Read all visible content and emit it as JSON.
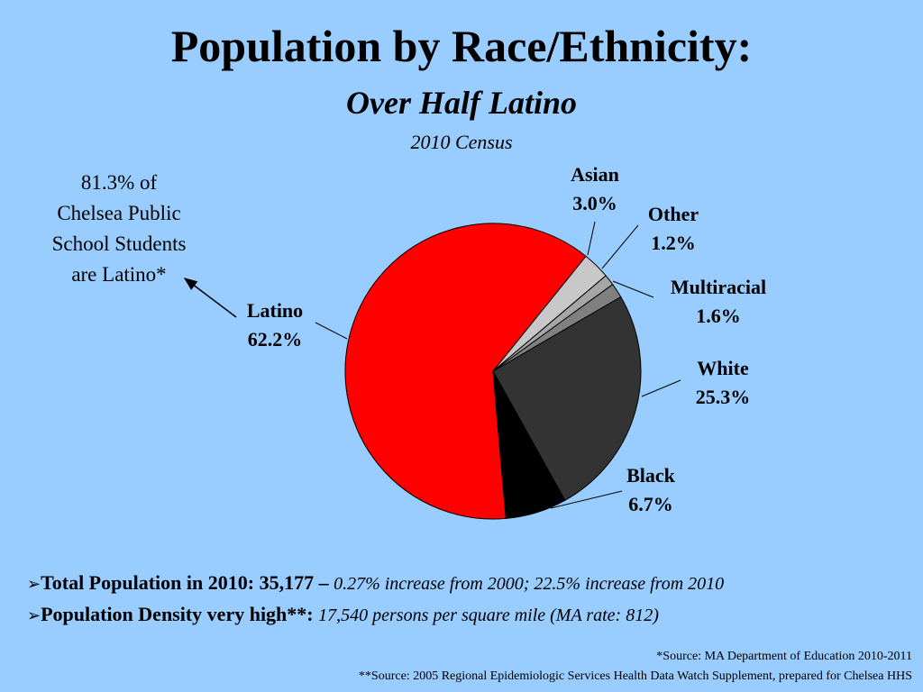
{
  "title": "Population by Race/Ethnicity:",
  "subtitle": "Over Half Latino",
  "census_label": "2010 Census",
  "callout": {
    "lines": [
      "81.3% of",
      "Chelsea Public",
      "School Students",
      "are Latino*"
    ]
  },
  "chart_data": {
    "type": "pie",
    "slices": [
      {
        "name": "Latino",
        "value": 62.2,
        "label": "62.2%",
        "color": "#ff0000"
      },
      {
        "name": "Asian",
        "value": 3.0,
        "label": "3.0%",
        "color": "#c8c8c8"
      },
      {
        "name": "Other",
        "value": 1.2,
        "label": "1.2%",
        "color": "#a6a6a6"
      },
      {
        "name": "Multiracial",
        "value": 1.6,
        "label": "1.6%",
        "color": "#808080"
      },
      {
        "name": "White",
        "value": 25.3,
        "label": "25.3%",
        "color": "#333333"
      },
      {
        "name": "Black",
        "value": 6.7,
        "label": "6.7%",
        "color": "#000000"
      }
    ]
  },
  "bullets": [
    {
      "marker": "➢",
      "label": "Total Population in 2010:  ",
      "value": "35,177",
      "sep": " – ",
      "detail": "0.27% increase from 2000; 22.5% increase from 2010"
    },
    {
      "marker": "➢",
      "label": "Population Density very high**:  ",
      "value": "",
      "sep": "",
      "detail": "17,540 persons per square mile (MA rate: 812)"
    }
  ],
  "sources": [
    "*Source:  MA Department of Education 2010-2011",
    "**Source:  2005 Regional Epidemiologic Services Health Data Watch Supplement, prepared for Chelsea HHS"
  ]
}
